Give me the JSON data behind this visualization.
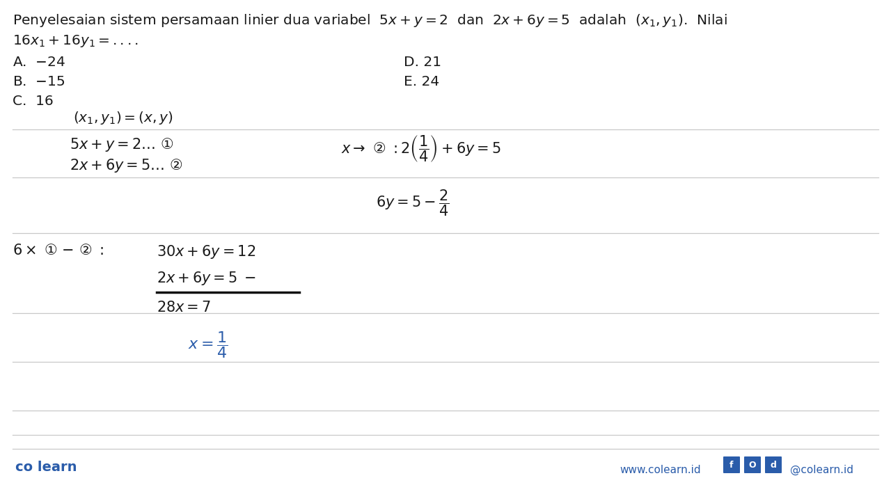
{
  "bg_color": "#ffffff",
  "text_color": "#1a1a1a",
  "blue_color": "#2a5caa",
  "line_color": "#c8c8c8",
  "footer_line_color": "#aaaaaa",
  "header_line1": "Penyelesaian sistem persamaan linier dua variabel  $5x + y = 2$  dan  $2x + 6y = 5$  adalah  $(x_1, y_1)$.  Nilai",
  "header_line2": "$16x_1 + 16y_1 = ....$",
  "opt_A": "A.  $-24$",
  "opt_B": "B.  $-15$",
  "opt_C": "C.  16",
  "opt_D": "D. 21",
  "opt_E": "E. 24",
  "handwrite_font": "DejaVu Sans",
  "figw": 12.8,
  "figh": 7.2,
  "dpi": 100
}
